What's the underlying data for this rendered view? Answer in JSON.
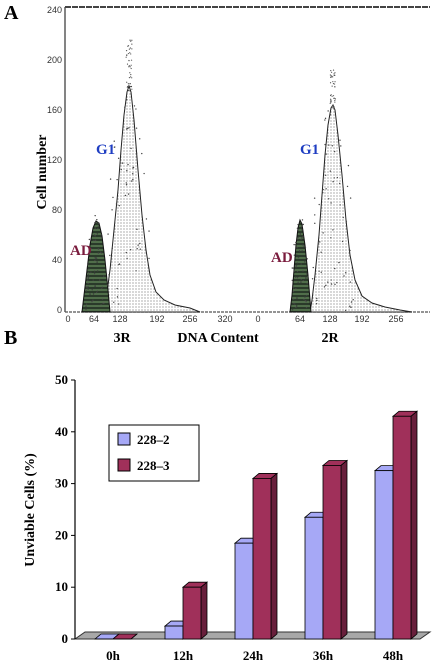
{
  "chart_data": [
    {
      "panel": "A",
      "type": "histogram",
      "ylabel": "Cell number",
      "xlabel": "DNA Content",
      "ylim": [
        0,
        240
      ],
      "yticks": [
        "0",
        "40",
        "80",
        "120",
        "160",
        "200",
        "240"
      ],
      "xticks": [
        "0",
        "64",
        "128",
        "192",
        "256",
        "320",
        "0",
        "64",
        "128",
        "192",
        "256"
      ],
      "sublabels": [
        "3R",
        "2R"
      ],
      "peak_labels": [
        "G1",
        "AD",
        "G1",
        "AD"
      ],
      "colors": {
        "g1": "#1f3ec2",
        "ad": "#7a1b3d"
      }
    },
    {
      "panel": "B",
      "type": "bar",
      "ylabel": "Unviable Cells (%)",
      "categories": [
        "0h",
        "12h",
        "24h",
        "36h",
        "48h"
      ],
      "ylim": [
        0,
        50
      ],
      "yticks": [
        "0",
        "10",
        "20",
        "30",
        "40",
        "50"
      ],
      "legend_position": "top-left",
      "series": [
        {
          "name": "228–2",
          "values": [
            0,
            2.5,
            18.5,
            23.5,
            32.5
          ],
          "color": "#a6a8f6"
        },
        {
          "name": "228–3",
          "values": [
            0,
            10,
            31,
            33.5,
            43
          ],
          "color": "#a0305a"
        }
      ]
    }
  ]
}
